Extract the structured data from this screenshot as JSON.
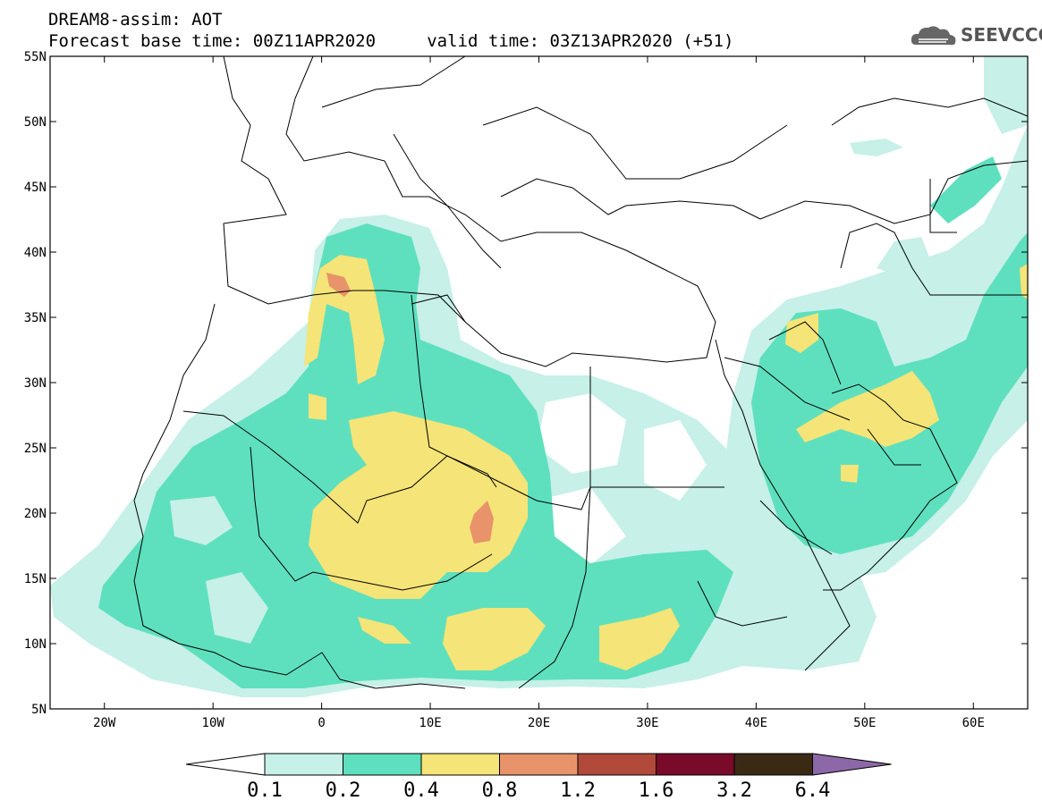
{
  "title": {
    "line1": "DREAM8-assim: AOT",
    "line2": "Forecast base time: 00Z11APR2020     valid time: 03Z13APR2020 (+51)"
  },
  "logo": {
    "text": "SEEVCCC",
    "icon": "cloud-icon"
  },
  "map": {
    "lon_range": [
      -25,
      65
    ],
    "lat_range": [
      5,
      55
    ],
    "lat_ticks": [
      "55N",
      "50N",
      "45N",
      "40N",
      "35N",
      "30N",
      "25N",
      "20N",
      "15N",
      "10N",
      "5N"
    ],
    "lat_values": [
      55,
      50,
      45,
      40,
      35,
      30,
      25,
      20,
      15,
      10,
      5
    ],
    "lon_ticks": [
      "20W",
      "10W",
      "0",
      "10E",
      "20E",
      "30E",
      "40E",
      "50E",
      "60E"
    ],
    "lon_values": [
      -20,
      -10,
      0,
      10,
      20,
      30,
      40,
      50,
      60
    ]
  },
  "colorbar": {
    "levels": [
      "0.1",
      "0.2",
      "0.4",
      "0.8",
      "1.2",
      "1.6",
      "3.2",
      "6.4"
    ],
    "colors": [
      "#ffffff",
      "#c6f0e8",
      "#5ee0be",
      "#f5e477",
      "#e8936a",
      "#b24a3c",
      "#7a0a2a",
      "#3a2a14",
      "#8c68a8"
    ]
  }
}
